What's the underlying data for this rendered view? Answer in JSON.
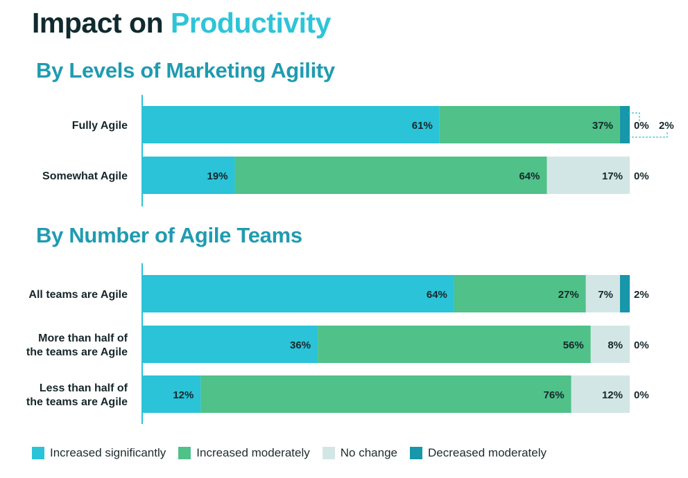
{
  "title_part1": "Impact on",
  "title_part2": "Productivity",
  "colors": {
    "increased_significantly": "#2ac3d8",
    "increased_moderately": "#4fc189",
    "no_change": "#d3e6e6",
    "decreased_moderately": "#1797a9"
  },
  "chart_data": [
    {
      "type": "bar",
      "orientation": "horizontal",
      "stacked": true,
      "title": "By Levels of Marketing Agility",
      "categories": [
        "Fully Agile",
        "Somewhat Agile"
      ],
      "series": [
        {
          "name": "Increased significantly",
          "values": [
            61,
            19
          ]
        },
        {
          "name": "Increased moderately",
          "values": [
            37,
            64
          ]
        },
        {
          "name": "No change",
          "values": [
            0,
            17
          ]
        },
        {
          "name": "Decreased moderately",
          "values": [
            2,
            0
          ]
        }
      ],
      "xlim": [
        0,
        100
      ],
      "grid": false
    },
    {
      "type": "bar",
      "orientation": "horizontal",
      "stacked": true,
      "title": "By Number of Agile Teams",
      "categories": [
        "All teams are Agile",
        "More than half of the teams are Agile",
        "Less than half of the teams are Agile"
      ],
      "series": [
        {
          "name": "Increased significantly",
          "values": [
            64,
            36,
            12
          ]
        },
        {
          "name": "Increased moderately",
          "values": [
            27,
            56,
            76
          ]
        },
        {
          "name": "No change",
          "values": [
            7,
            8,
            12
          ]
        },
        {
          "name": "Decreased moderately",
          "values": [
            2,
            0,
            0
          ]
        }
      ],
      "xlim": [
        0,
        100
      ],
      "grid": false
    }
  ],
  "legend": {
    "placement": "bottom",
    "items": [
      "Increased significantly",
      "Increased moderately",
      "No change",
      "Decreased moderately"
    ]
  }
}
